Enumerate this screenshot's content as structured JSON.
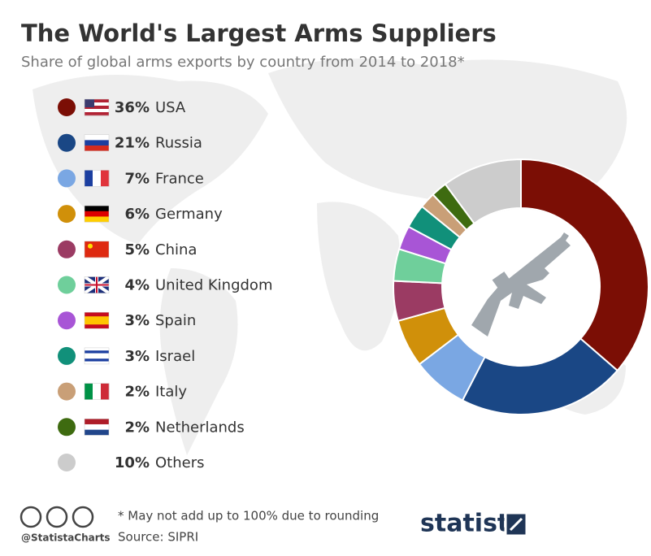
{
  "chart_data": {
    "type": "pie",
    "donut": true,
    "title": "The World's Largest Arms Suppliers",
    "subtitle": "Share of global arms exports by country from 2014 to 2018*",
    "categories": [
      "USA",
      "Russia",
      "France",
      "Germany",
      "China",
      "United Kingdom",
      "Spain",
      "Israel",
      "Italy",
      "Netherlands",
      "Others"
    ],
    "values": [
      36,
      21,
      7,
      6,
      5,
      4,
      3,
      3,
      2,
      2,
      10
    ],
    "value_labels": [
      "36%",
      "21%",
      "7%",
      "6%",
      "5%",
      "4%",
      "3%",
      "3%",
      "2%",
      "2%",
      "10%"
    ],
    "colors": [
      "#7b0e05",
      "#1a4785",
      "#7aa7e3",
      "#d0900a",
      "#9b3b63",
      "#6fcf9b",
      "#a855d6",
      "#11907a",
      "#c99f77",
      "#3e6b10",
      "#cccccc"
    ],
    "note": "* May not add up to 100% due to rounding",
    "source": "Source: SIPRI",
    "credit": "@StatistaCharts",
    "brand": "statista"
  }
}
